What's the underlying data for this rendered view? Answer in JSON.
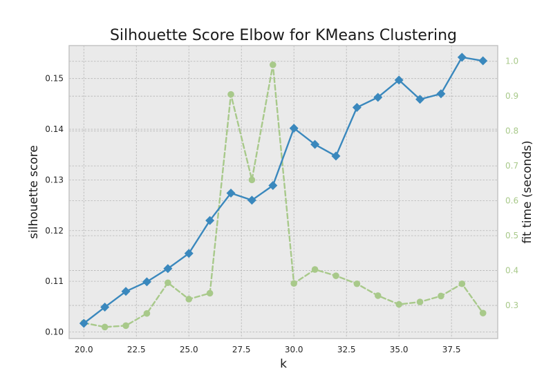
{
  "chart_data": {
    "type": "line",
    "title": "Silhouette Score Elbow for KMeans Clustering",
    "xlabel": "k",
    "ylabel": "silhouette score",
    "y2label": "fit time (seconds)",
    "x": [
      20,
      21,
      22,
      23,
      24,
      25,
      26,
      27,
      28,
      29,
      30,
      31,
      32,
      33,
      34,
      35,
      36,
      37,
      38,
      39
    ],
    "xlim": [
      19.3,
      39.7
    ],
    "xticks": [
      "20.0",
      "22.5",
      "25.0",
      "27.5",
      "30.0",
      "32.5",
      "35.0",
      "37.5"
    ],
    "ylim": [
      0.0987,
      0.1565
    ],
    "yticks": [
      "0.10",
      "0.11",
      "0.12",
      "0.13",
      "0.14",
      "0.15"
    ],
    "y2lim": [
      0.205,
      1.045
    ],
    "y2ticks": [
      "0.3",
      "0.4",
      "0.5",
      "0.6",
      "0.7",
      "0.8",
      "0.9",
      "1.0"
    ],
    "grid": true,
    "series": [
      {
        "axis": "left",
        "color": "#3a88bd",
        "marker": "diamond",
        "style": "solid",
        "values": [
          0.1017,
          0.1049,
          0.108,
          0.1099,
          0.1125,
          0.1155,
          0.122,
          0.1274,
          0.126,
          0.1289,
          0.1402,
          0.137,
          0.1347,
          0.1443,
          0.1463,
          0.1497,
          0.1459,
          0.147,
          0.1542,
          0.1535
        ]
      },
      {
        "axis": "right",
        "color": "#a8c98a",
        "marker": "circle",
        "style": "dashed",
        "values": [
          0.25,
          0.238,
          0.242,
          0.277,
          0.365,
          0.318,
          0.335,
          0.905,
          0.66,
          0.99,
          0.363,
          0.403,
          0.385,
          0.362,
          0.328,
          0.303,
          0.31,
          0.327,
          0.362,
          0.278
        ]
      }
    ]
  }
}
